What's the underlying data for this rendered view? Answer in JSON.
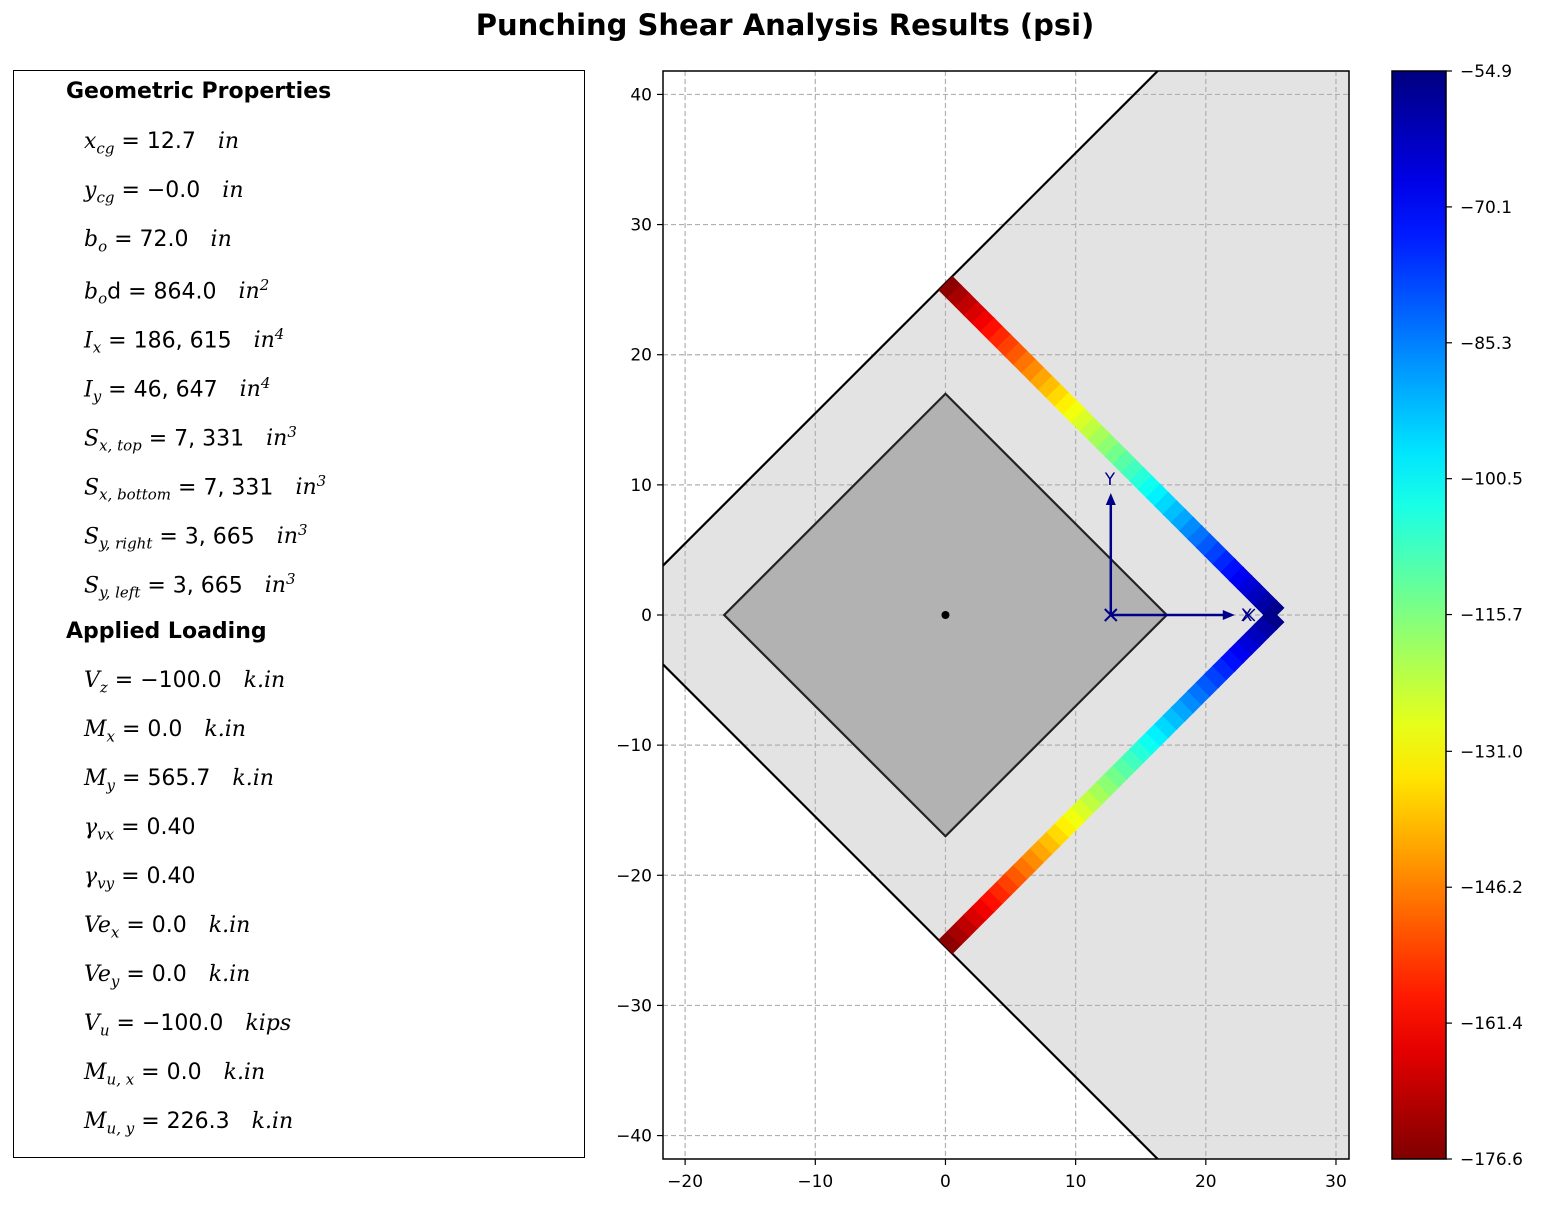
{
  "title": "Punching Shear Analysis Results (psi)",
  "properties_panel": {
    "geometric_heading": "Geometric Properties",
    "geometric": [
      {
        "sym": "x",
        "sub": "cg",
        "sup": "",
        "eq": " = ",
        "value": "12.7",
        "unit": "in",
        "unit_sup": ""
      },
      {
        "sym": "y",
        "sub": "cg",
        "sup": "",
        "eq": " = ",
        "value": "−0.0",
        "unit": "in",
        "unit_sup": ""
      },
      {
        "sym": "b",
        "sub": "o",
        "sup": "",
        "eq": " = ",
        "value": "72.0",
        "unit": "in",
        "unit_sup": ""
      },
      {
        "sym": "b",
        "sub": "o",
        "sup": "",
        "eq": "d = ",
        "value": "864.0",
        "unit": "in",
        "unit_sup": "2"
      },
      {
        "sym": "I",
        "sub": "x",
        "sup": "",
        "eq": " = ",
        "value": "186, 615",
        "unit": "in",
        "unit_sup": "4"
      },
      {
        "sym": "I",
        "sub": "y",
        "sup": "",
        "eq": " = ",
        "value": "46, 647",
        "unit": "in",
        "unit_sup": "4"
      },
      {
        "sym": "S",
        "sub": "x, top",
        "sup": "",
        "eq": " = ",
        "value": "7, 331",
        "unit": "in",
        "unit_sup": "3"
      },
      {
        "sym": "S",
        "sub": "x, bottom",
        "sup": "",
        "eq": " = ",
        "value": "7, 331",
        "unit": "in",
        "unit_sup": "3"
      },
      {
        "sym": "S",
        "sub": "y, right",
        "sup": "",
        "eq": " = ",
        "value": "3, 665",
        "unit": "in",
        "unit_sup": "3"
      },
      {
        "sym": "S",
        "sub": "y, left",
        "sup": "",
        "eq": " = ",
        "value": "3, 665",
        "unit": "in",
        "unit_sup": "3"
      }
    ],
    "loading_heading": "Applied Loading",
    "loading": [
      {
        "sym": "V",
        "sub": "z",
        "sup": "",
        "eq": " = ",
        "value": "−100.0",
        "unit": "k.in",
        "unit_sup": ""
      },
      {
        "sym": "M",
        "sub": "x",
        "sup": "",
        "eq": " = ",
        "value": "0.0",
        "unit": "k.in",
        "unit_sup": ""
      },
      {
        "sym": "M",
        "sub": "y",
        "sup": "",
        "eq": " = ",
        "value": "565.7",
        "unit": "k.in",
        "unit_sup": ""
      },
      {
        "sym": "γ",
        "sub": "vx",
        "sup": "",
        "eq": " = ",
        "value": "0.40",
        "unit": "",
        "unit_sup": ""
      },
      {
        "sym": "γ",
        "sub": "vy",
        "sup": "",
        "eq": " = ",
        "value": "0.40",
        "unit": "",
        "unit_sup": ""
      },
      {
        "sym": "Ve",
        "sub": "x",
        "sup": "",
        "eq": " = ",
        "value": "0.0",
        "unit": "k.in",
        "unit_sup": ""
      },
      {
        "sym": "Ve",
        "sub": "y",
        "sup": "",
        "eq": " = ",
        "value": "0.0",
        "unit": "k.in",
        "unit_sup": ""
      },
      {
        "sym": "V",
        "sub": "u",
        "sup": "",
        "eq": " = ",
        "value": "−100.0",
        "unit": "kips",
        "unit_sup": ""
      },
      {
        "sym": "M",
        "sub": "u, x",
        "sup": "",
        "eq": " = ",
        "value": "0.0",
        "unit": "k.in",
        "unit_sup": ""
      },
      {
        "sym": "M",
        "sub": "u, y",
        "sup": "",
        "eq": " = ",
        "value": "226.3",
        "unit": "k.in",
        "unit_sup": ""
      }
    ]
  },
  "chart_data": {
    "type": "heatmap",
    "xlim": [
      -21.7,
      31
    ],
    "ylim": [
      -41.8,
      41.8
    ],
    "xticks": [
      -20,
      -10,
      0,
      10,
      20,
      30
    ],
    "yticks": [
      -40,
      -30,
      -20,
      -10,
      0,
      10,
      20,
      30,
      40
    ],
    "xtick_labels": [
      "−20",
      "−10",
      "0",
      "10",
      "20",
      "30"
    ],
    "ytick_labels": [
      "−40",
      "−30",
      "−20",
      "−10",
      "0",
      "10",
      "20",
      "30",
      "40"
    ],
    "grid": true,
    "slab_region": {
      "fill": "#e3e3e3",
      "boundary": [
        [
          -21.7,
          3.8
        ],
        [
          0,
          25.5
        ],
        [
          16.3,
          41.8
        ],
        [
          31,
          41.8
        ],
        [
          31,
          -41.8
        ],
        [
          16.3,
          -41.8
        ],
        [
          0,
          -25.5
        ],
        [
          -21.7,
          -3.8
        ]
      ]
    },
    "column": {
      "fill": "#b2b2b2",
      "outline": [
        [
          -17,
          0
        ],
        [
          0,
          17
        ],
        [
          17,
          0
        ],
        [
          0,
          -17
        ]
      ]
    },
    "column_center": [
      0,
      0
    ],
    "critical_section": {
      "upper_leg": {
        "start": [
          0,
          25.5
        ],
        "end": [
          25.5,
          0
        ],
        "stress_start": -54.9,
        "stress_end": -176.6
      },
      "lower_leg": {
        "start": [
          0,
          -25.5
        ],
        "end": [
          25.5,
          0
        ],
        "stress_start": -54.9,
        "stress_end": -176.6
      }
    },
    "centroid_axes": {
      "origin": [
        12.7,
        0
      ],
      "x_label": "X",
      "y_label": "Y",
      "color": "#00008b"
    },
    "colorbar": {
      "min": -176.6,
      "max": -54.9,
      "colormap": "jet",
      "ticks": [
        -54.9,
        -70.1,
        -85.3,
        -100.5,
        -115.7,
        -131.0,
        -146.2,
        -161.4,
        -176.6
      ],
      "tick_labels": [
        "−54.9",
        "−70.1",
        "−85.3",
        "−100.5",
        "−115.7",
        "−131.0",
        "−146.2",
        "−161.4",
        "−176.6"
      ]
    }
  }
}
